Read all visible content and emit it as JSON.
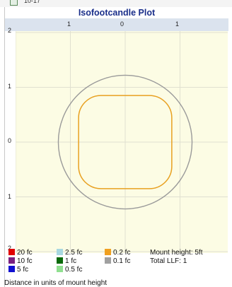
{
  "top_fragment": "10-17",
  "chart_data": {
    "type": "area",
    "title": "Isofootcandle Plot",
    "top_tick_labels": [
      "1",
      "0",
      "1"
    ],
    "left_tick_labels": [
      "2",
      "1",
      "0",
      "1",
      "2"
    ],
    "xlim": [
      -2,
      2
    ],
    "ylim": [
      -2,
      2
    ],
    "grid": true,
    "contours": [
      {
        "level": "0.2 fc",
        "color": "#e8a020",
        "shape": "rounded-square",
        "half_extent": 0.85
      },
      {
        "level": "0.1 fc",
        "color": "#9a9a9a",
        "shape": "circle",
        "radius": 1.22
      }
    ],
    "legend": [
      {
        "label": "20 fc",
        "color": "#e00000"
      },
      {
        "label": "10 fc",
        "color": "#7a2080"
      },
      {
        "label": "5 fc",
        "color": "#1010d0"
      },
      {
        "label": "2.5 fc",
        "color": "#a8d8e0"
      },
      {
        "label": "1 fc",
        "color": "#0a6a0a"
      },
      {
        "label": "0.5 fc",
        "color": "#90e090"
      },
      {
        "label": "0.2 fc",
        "color": "#f0a020"
      },
      {
        "label": "0.1 fc",
        "color": "#a0a0a0"
      }
    ],
    "mount_height": "Mount height: 5ft",
    "total_llf": "Total LLF: 1",
    "footer_note": "Distance in units of mount height",
    "plot_bg": "#fcfce4",
    "grid_color": "#e0e0d0"
  }
}
